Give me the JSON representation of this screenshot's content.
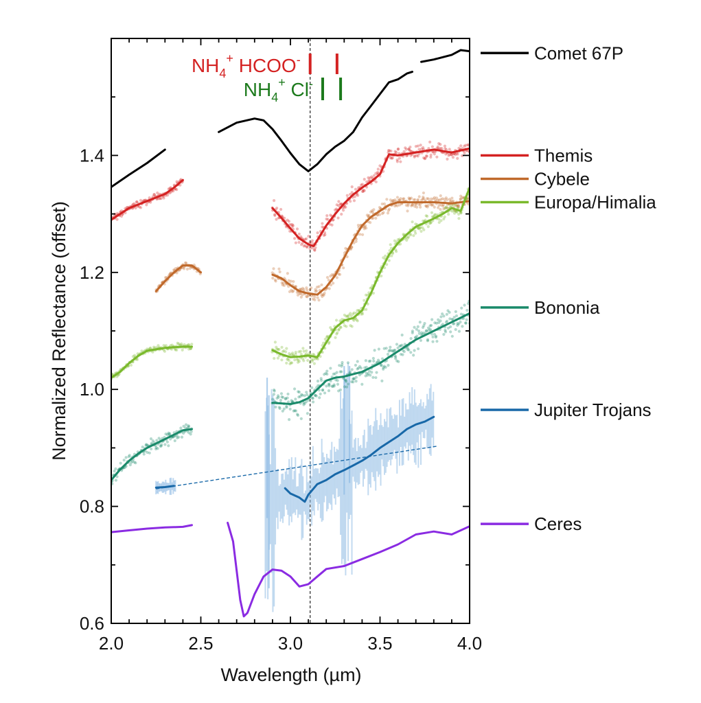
{
  "chart_data": {
    "type": "line",
    "xlabel": "Wavelength (µm)",
    "ylabel": "Normalized Reflectance (offset)",
    "xlim": [
      2.0,
      4.0
    ],
    "ylim": [
      0.6,
      1.6
    ],
    "x_ticks": [
      2.0,
      2.5,
      3.0,
      3.5,
      4.0
    ],
    "x_tick_labels": [
      "2.0",
      "2.5",
      "3.0",
      "3.5",
      "4.0"
    ],
    "y_ticks": [
      0.6,
      0.8,
      1.0,
      1.2,
      1.4
    ],
    "y_tick_labels": [
      "0.6",
      "0.8",
      "1.0",
      "1.2",
      "1.4"
    ],
    "grid": false,
    "legend_position": "right",
    "reference_line_x": 3.11,
    "band_markers": [
      {
        "label": "NH4+ HCOO-",
        "label_parts": [
          "NH",
          "4",
          "+",
          " HCOO",
          "-"
        ],
        "color": "#d42222",
        "x": [
          3.11,
          3.26
        ]
      },
      {
        "label": "NH4+ Cl-",
        "label_parts": [
          "NH",
          "4",
          "+",
          " Cl",
          "-"
        ],
        "color": "#1c7a1c",
        "x": [
          3.18,
          3.28
        ]
      }
    ],
    "series": [
      {
        "name": "Comet 67P",
        "color": "#000000",
        "legend_y": 1.575,
        "segments": [
          [
            [
              2.0,
              1.346
            ],
            [
              2.1,
              1.367
            ],
            [
              2.2,
              1.387
            ],
            [
              2.3,
              1.41
            ]
          ],
          [
            [
              2.6,
              1.44
            ],
            [
              2.7,
              1.456
            ],
            [
              2.8,
              1.463
            ],
            [
              2.85,
              1.46
            ],
            [
              2.9,
              1.445
            ],
            [
              2.95,
              1.425
            ],
            [
              3.0,
              1.404
            ],
            [
              3.05,
              1.385
            ],
            [
              3.1,
              1.373
            ],
            [
              3.15,
              1.385
            ],
            [
              3.2,
              1.402
            ],
            [
              3.25,
              1.415
            ],
            [
              3.3,
              1.425
            ],
            [
              3.35,
              1.44
            ],
            [
              3.4,
              1.465
            ],
            [
              3.45,
              1.485
            ],
            [
              3.5,
              1.505
            ],
            [
              3.55,
              1.525
            ],
            [
              3.6,
              1.53
            ],
            [
              3.65,
              1.54
            ],
            [
              3.68,
              1.543
            ]
          ],
          [
            [
              3.73,
              1.56
            ],
            [
              3.8,
              1.564
            ],
            [
              3.85,
              1.568
            ],
            [
              3.9,
              1.572
            ],
            [
              3.95,
              1.58
            ],
            [
              4.0,
              1.578
            ]
          ]
        ]
      },
      {
        "name": "Themis",
        "color": "#d42222",
        "scatter": true,
        "legend_y": 1.4,
        "segments": [
          [
            [
              2.0,
              1.29
            ],
            [
              2.1,
              1.31
            ],
            [
              2.2,
              1.322
            ],
            [
              2.3,
              1.334
            ],
            [
              2.35,
              1.345
            ],
            [
              2.4,
              1.358
            ]
          ],
          [
            [
              2.9,
              1.31
            ],
            [
              2.95,
              1.293
            ],
            [
              3.0,
              1.275
            ],
            [
              3.05,
              1.258
            ],
            [
              3.1,
              1.248
            ],
            [
              3.13,
              1.245
            ],
            [
              3.2,
              1.28
            ],
            [
              3.25,
              1.3
            ],
            [
              3.3,
              1.318
            ],
            [
              3.35,
              1.333
            ],
            [
              3.4,
              1.345
            ],
            [
              3.45,
              1.355
            ],
            [
              3.5,
              1.368
            ],
            [
              3.55,
              1.402
            ],
            [
              3.6,
              1.4
            ],
            [
              3.7,
              1.405
            ],
            [
              3.8,
              1.41
            ],
            [
              3.9,
              1.405
            ],
            [
              4.0,
              1.412
            ]
          ]
        ]
      },
      {
        "name": "Cybele",
        "color": "#c0692b",
        "scatter": true,
        "legend_y": 1.36,
        "segments": [
          [
            [
              2.25,
              1.168
            ],
            [
              2.3,
              1.185
            ],
            [
              2.35,
              1.2
            ],
            [
              2.4,
              1.212
            ],
            [
              2.45,
              1.212
            ],
            [
              2.5,
              1.2
            ]
          ],
          [
            [
              2.9,
              1.196
            ],
            [
              2.95,
              1.19
            ],
            [
              3.0,
              1.178
            ],
            [
              3.05,
              1.168
            ],
            [
              3.1,
              1.164
            ],
            [
              3.15,
              1.162
            ],
            [
              3.2,
              1.175
            ],
            [
              3.25,
              1.195
            ],
            [
              3.3,
              1.225
            ],
            [
              3.35,
              1.255
            ],
            [
              3.4,
              1.28
            ],
            [
              3.45,
              1.295
            ],
            [
              3.5,
              1.305
            ],
            [
              3.55,
              1.315
            ],
            [
              3.6,
              1.32
            ],
            [
              3.7,
              1.32
            ],
            [
              3.8,
              1.32
            ],
            [
              3.9,
              1.318
            ],
            [
              4.0,
              1.322
            ]
          ]
        ]
      },
      {
        "name": "Europa/Himalia",
        "color": "#7ab92c",
        "scatter": true,
        "legend_y": 1.32,
        "segments": [
          [
            [
              2.0,
              1.02
            ],
            [
              2.05,
              1.03
            ],
            [
              2.1,
              1.045
            ],
            [
              2.15,
              1.057
            ],
            [
              2.2,
              1.066
            ],
            [
              2.3,
              1.071
            ],
            [
              2.4,
              1.073
            ],
            [
              2.45,
              1.073
            ]
          ],
          [
            [
              2.9,
              1.067
            ],
            [
              2.95,
              1.06
            ],
            [
              3.0,
              1.055
            ],
            [
              3.05,
              1.056
            ],
            [
              3.1,
              1.058
            ],
            [
              3.15,
              1.055
            ],
            [
              3.2,
              1.08
            ],
            [
              3.25,
              1.105
            ],
            [
              3.3,
              1.118
            ],
            [
              3.35,
              1.122
            ],
            [
              3.4,
              1.135
            ],
            [
              3.45,
              1.165
            ],
            [
              3.5,
              1.2
            ],
            [
              3.55,
              1.23
            ],
            [
              3.6,
              1.25
            ],
            [
              3.65,
              1.265
            ],
            [
              3.7,
              1.278
            ],
            [
              3.75,
              1.285
            ],
            [
              3.8,
              1.292
            ],
            [
              3.85,
              1.3
            ],
            [
              3.9,
              1.31
            ],
            [
              3.95,
              1.305
            ],
            [
              4.0,
              1.345
            ]
          ]
        ]
      },
      {
        "name": "Bononia",
        "color": "#1a8a6a",
        "scatter": true,
        "legend_y": 1.14,
        "segments": [
          [
            [
              2.0,
              0.845
            ],
            [
              2.05,
              0.863
            ],
            [
              2.1,
              0.878
            ],
            [
              2.15,
              0.89
            ],
            [
              2.2,
              0.9
            ],
            [
              2.3,
              0.915
            ],
            [
              2.4,
              0.93
            ],
            [
              2.45,
              0.932
            ]
          ],
          [
            [
              2.9,
              0.977
            ],
            [
              3.0,
              0.975
            ],
            [
              3.05,
              0.978
            ],
            [
              3.1,
              0.985
            ],
            [
              3.15,
              1.0
            ],
            [
              3.2,
              1.015
            ],
            [
              3.25,
              1.02
            ],
            [
              3.3,
              1.022
            ],
            [
              3.4,
              1.03
            ],
            [
              3.5,
              1.045
            ],
            [
              3.6,
              1.065
            ],
            [
              3.7,
              1.085
            ],
            [
              3.8,
              1.1
            ],
            [
              3.9,
              1.115
            ],
            [
              4.0,
              1.13
            ]
          ]
        ]
      },
      {
        "name": "Jupiter Trojans",
        "color": "#1868a8",
        "scatter": false,
        "legend_y": 0.965,
        "segments": [
          [
            [
              2.25,
              0.832
            ],
            [
              2.3,
              0.833
            ],
            [
              2.35,
              0.835
            ]
          ],
          [
            [
              2.97,
              0.831
            ],
            [
              3.0,
              0.822
            ],
            [
              3.05,
              0.815
            ],
            [
              3.08,
              0.808
            ],
            [
              3.1,
              0.82
            ],
            [
              3.15,
              0.838
            ],
            [
              3.2,
              0.845
            ],
            [
              3.25,
              0.855
            ],
            [
              3.3,
              0.862
            ],
            [
              3.35,
              0.87
            ],
            [
              3.4,
              0.878
            ],
            [
              3.45,
              0.888
            ],
            [
              3.5,
              0.9
            ],
            [
              3.55,
              0.91
            ],
            [
              3.6,
              0.92
            ],
            [
              3.65,
              0.932
            ],
            [
              3.7,
              0.94
            ],
            [
              3.75,
              0.945
            ],
            [
              3.8,
              0.953
            ]
          ]
        ],
        "continuum": [
          [
            2.25,
            0.83
          ],
          [
            3.82,
            0.903
          ]
        ]
      },
      {
        "name": "Ceres",
        "color": "#8a2be2",
        "scatter": false,
        "legend_y": 0.77,
        "segments": [
          [
            [
              2.0,
              0.756
            ],
            [
              2.1,
              0.759
            ],
            [
              2.2,
              0.762
            ],
            [
              2.3,
              0.764
            ],
            [
              2.4,
              0.765
            ],
            [
              2.45,
              0.768
            ]
          ],
          [
            [
              2.65,
              0.772
            ],
            [
              2.68,
              0.74
            ],
            [
              2.7,
              0.69
            ],
            [
              2.72,
              0.64
            ],
            [
              2.74,
              0.612
            ],
            [
              2.76,
              0.618
            ],
            [
              2.8,
              0.65
            ],
            [
              2.85,
              0.68
            ],
            [
              2.9,
              0.692
            ],
            [
              2.95,
              0.69
            ],
            [
              3.0,
              0.68
            ],
            [
              3.05,
              0.663
            ],
            [
              3.1,
              0.667
            ],
            [
              3.15,
              0.68
            ],
            [
              3.2,
              0.693
            ],
            [
              3.3,
              0.698
            ],
            [
              3.4,
              0.71
            ],
            [
              3.5,
              0.722
            ],
            [
              3.6,
              0.735
            ],
            [
              3.7,
              0.752
            ],
            [
              3.8,
              0.757
            ],
            [
              3.9,
              0.752
            ],
            [
              4.0,
              0.766
            ]
          ]
        ]
      }
    ]
  }
}
